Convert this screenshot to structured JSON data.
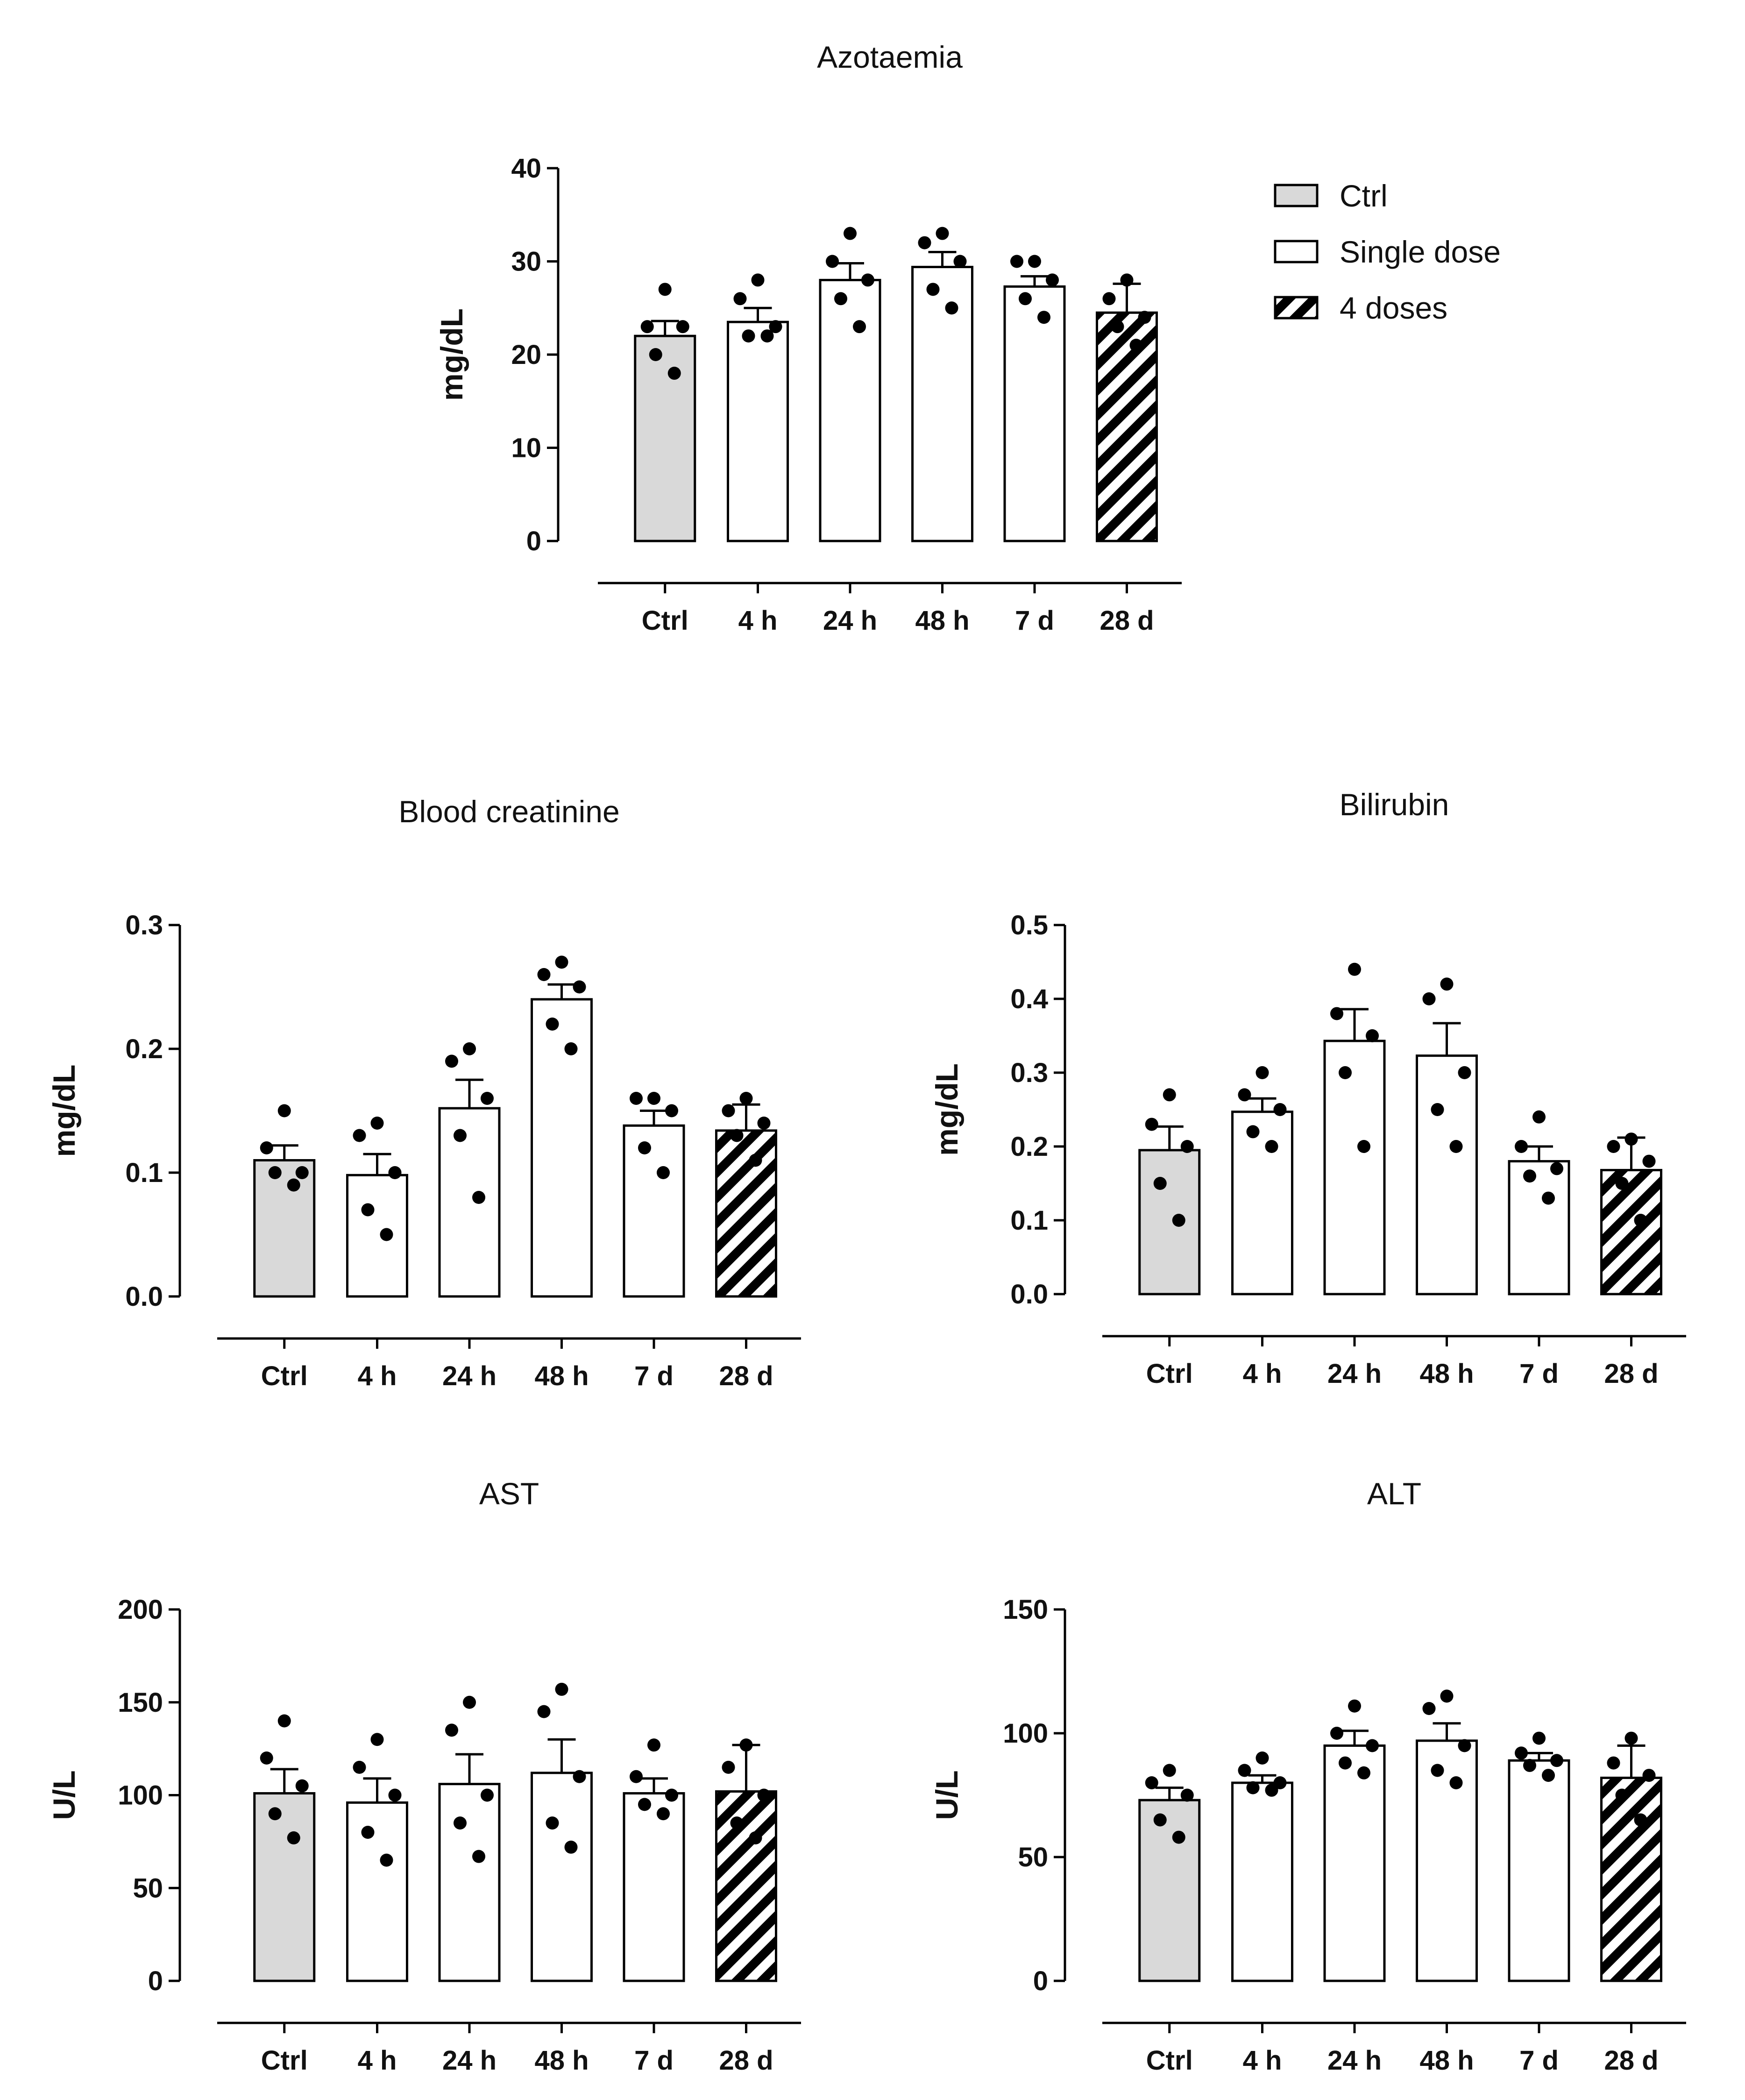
{
  "legend": {
    "items": [
      {
        "label": "Ctrl",
        "fill": "gray"
      },
      {
        "label": "Single dose",
        "fill": "white"
      },
      {
        "label": "4 doses",
        "fill": "hatch"
      }
    ]
  },
  "colors": {
    "ctrl_fill": "#d9d9d9",
    "single_fill": "#ffffff",
    "stroke": "#000000",
    "dot": "#000000"
  },
  "chart_data": [
    {
      "id": "azotaemia",
      "type": "bar",
      "title": "Azotaemia",
      "ylabel": "mg/dL",
      "xlabel": "",
      "ylim": [
        0,
        40
      ],
      "yticks": [
        "0",
        "10",
        "20",
        "30",
        "40"
      ],
      "ytick_values": [
        0,
        10,
        20,
        30,
        40
      ],
      "categories": [
        "Ctrl",
        "4 h",
        "24 h",
        "48 h",
        "7 d",
        "28 d"
      ],
      "fills": [
        "gray",
        "white",
        "white",
        "white",
        "white",
        "hatch"
      ],
      "values": [
        22,
        23.5,
        28,
        29.4,
        27.3,
        24.5
      ],
      "errors": [
        1.6,
        1.5,
        1.8,
        1.6,
        1.1,
        3.1
      ],
      "points": [
        [
          27,
          23,
          23,
          20,
          18
        ],
        [
          28,
          26,
          23,
          22,
          22
        ],
        [
          33,
          30,
          28,
          26,
          23
        ],
        [
          33,
          32,
          30,
          27,
          25
        ],
        [
          30,
          30,
          28,
          26,
          24
        ],
        [
          28,
          26,
          24,
          23,
          21
        ]
      ]
    },
    {
      "id": "blood-creatinine",
      "type": "bar",
      "title": "Blood creatinine",
      "ylabel": "mg/dL",
      "xlabel": "",
      "ylim": [
        0,
        0.3
      ],
      "yticks": [
        "0.0",
        "0.1",
        "0.2",
        "0.3"
      ],
      "ytick_values": [
        0,
        0.1,
        0.2,
        0.3
      ],
      "categories": [
        "Ctrl",
        "4 h",
        "24 h",
        "48 h",
        "7 d",
        "28 d"
      ],
      "fills": [
        "gray",
        "white",
        "white",
        "white",
        "white",
        "hatch"
      ],
      "values": [
        0.11,
        0.098,
        0.152,
        0.24,
        0.138,
        0.134
      ],
      "errors": [
        0.012,
        0.017,
        0.023,
        0.012,
        0.012,
        0.021
      ],
      "points": [
        [
          0.15,
          0.12,
          0.1,
          0.1,
          0.09
        ],
        [
          0.14,
          0.13,
          0.1,
          0.07,
          0.05
        ],
        [
          0.2,
          0.19,
          0.16,
          0.13,
          0.08
        ],
        [
          0.27,
          0.26,
          0.25,
          0.22,
          0.2
        ],
        [
          0.16,
          0.16,
          0.15,
          0.12,
          0.1
        ],
        [
          0.16,
          0.15,
          0.14,
          0.13,
          0.11
        ]
      ]
    },
    {
      "id": "bilirubin",
      "type": "bar",
      "title": "Bilirubin",
      "ylabel": "mg/dL",
      "xlabel": "",
      "ylim": [
        0,
        0.5
      ],
      "yticks": [
        "0.0",
        "0.1",
        "0.2",
        "0.3",
        "0.4",
        "0.5"
      ],
      "ytick_values": [
        0,
        0.1,
        0.2,
        0.3,
        0.4,
        0.5
      ],
      "categories": [
        "Ctrl",
        "4 h",
        "24 h",
        "48 h",
        "7 d",
        "28 d"
      ],
      "fills": [
        "gray",
        "white",
        "white",
        "white",
        "white",
        "hatch"
      ],
      "values": [
        0.195,
        0.247,
        0.343,
        0.323,
        0.18,
        0.168
      ],
      "errors": [
        0.032,
        0.018,
        0.043,
        0.044,
        0.02,
        0.044
      ],
      "points": [
        [
          0.27,
          0.23,
          0.2,
          0.15,
          0.1
        ],
        [
          0.3,
          0.27,
          0.25,
          0.22,
          0.2
        ],
        [
          0.44,
          0.38,
          0.35,
          0.3,
          0.2
        ],
        [
          0.42,
          0.4,
          0.3,
          0.25,
          0.2
        ],
        [
          0.24,
          0.2,
          0.17,
          0.16,
          0.13
        ],
        [
          0.21,
          0.2,
          0.18,
          0.15,
          0.1
        ]
      ]
    },
    {
      "id": "ast",
      "type": "bar",
      "title": "AST",
      "ylabel": "U/L",
      "xlabel": "",
      "ylim": [
        0,
        200
      ],
      "yticks": [
        "0",
        "50",
        "100",
        "150",
        "200"
      ],
      "ytick_values": [
        0,
        50,
        100,
        150,
        200
      ],
      "categories": [
        "Ctrl",
        "4 h",
        "24 h",
        "48 h",
        "7 d",
        "28 d"
      ],
      "fills": [
        "gray",
        "white",
        "white",
        "white",
        "white",
        "hatch"
      ],
      "values": [
        101,
        96,
        106,
        112,
        101,
        102
      ],
      "errors": [
        13,
        13,
        16,
        18,
        8,
        25
      ],
      "points": [
        [
          140,
          120,
          105,
          90,
          77
        ],
        [
          130,
          115,
          100,
          80,
          65
        ],
        [
          150,
          135,
          100,
          85,
          67
        ],
        [
          157,
          145,
          110,
          85,
          72
        ],
        [
          127,
          110,
          100,
          95,
          90
        ],
        [
          127,
          115,
          100,
          85,
          77
        ]
      ]
    },
    {
      "id": "alt",
      "type": "bar",
      "title": "ALT",
      "ylabel": "U/L",
      "xlabel": "",
      "ylim": [
        0,
        150
      ],
      "yticks": [
        "0",
        "50",
        "100",
        "150"
      ],
      "ytick_values": [
        0,
        50,
        100,
        150
      ],
      "categories": [
        "Ctrl",
        "4 h",
        "24 h",
        "48 h",
        "7 d",
        "28 d"
      ],
      "fills": [
        "gray",
        "white",
        "white",
        "white",
        "white",
        "hatch"
      ],
      "values": [
        73,
        80,
        95,
        97,
        89,
        82
      ],
      "errors": [
        5,
        3,
        6,
        7,
        3,
        13
      ],
      "points": [
        [
          85,
          80,
          75,
          65,
          58
        ],
        [
          90,
          85,
          80,
          78,
          77
        ],
        [
          111,
          100,
          95,
          88,
          84
        ],
        [
          115,
          110,
          95,
          85,
          80
        ],
        [
          98,
          92,
          89,
          87,
          83
        ],
        [
          98,
          88,
          83,
          75,
          65
        ]
      ]
    }
  ]
}
